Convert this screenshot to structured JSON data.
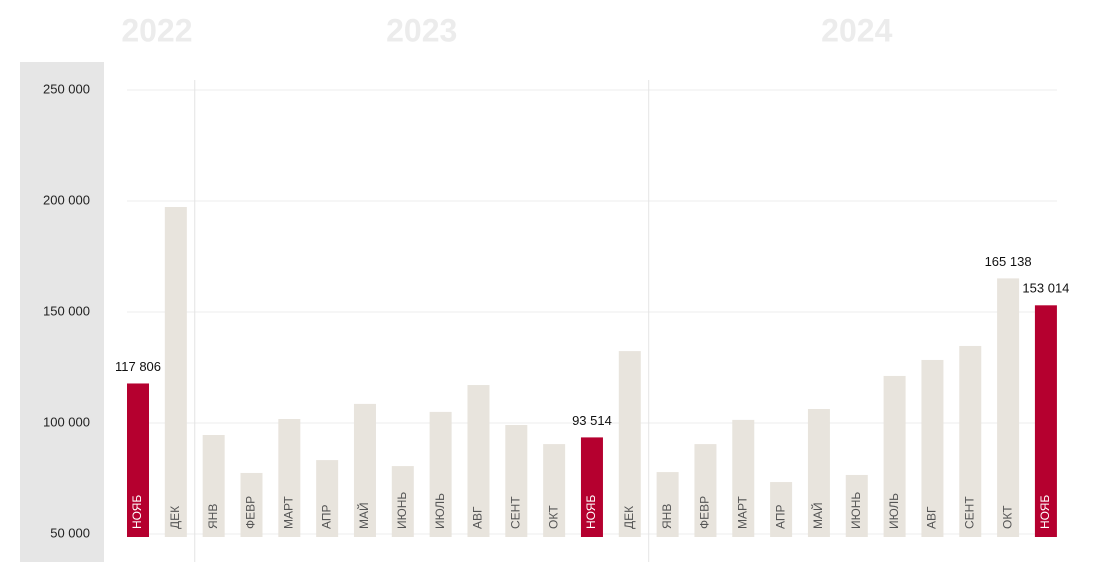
{
  "chart_data": {
    "type": "bar",
    "ylim": [
      48650,
      250000
    ],
    "yticks": [
      {
        "value": 50000,
        "label": "50 000"
      },
      {
        "value": 100000,
        "label": "100 000"
      },
      {
        "value": 150000,
        "label": "150 000"
      },
      {
        "value": 200000,
        "label": "200 000"
      },
      {
        "value": 250000,
        "label": "250 000"
      }
    ],
    "grid": true,
    "groups": [
      {
        "label": "2022",
        "categories": [
          "НОЯБ",
          "ДЕК"
        ],
        "values": [
          117806,
          197300
        ],
        "value_labels": [
          "117 806",
          null
        ],
        "colors": [
          "#b5002f",
          "#e8e4dd"
        ]
      },
      {
        "label": "2023",
        "categories": [
          "ЯНВ",
          "ФЕВР",
          "МАРТ",
          "АПР",
          "МАЙ",
          "ИЮНЬ",
          "ИЮЛЬ",
          "АВГ",
          "СЕНТ",
          "ОКТ",
          "НОЯБ",
          "ДЕК"
        ],
        "values": [
          94600,
          77500,
          101800,
          83300,
          108600,
          80600,
          105000,
          117100,
          99100,
          90500,
          93514,
          132400
        ],
        "value_labels": [
          null,
          null,
          null,
          null,
          null,
          null,
          null,
          null,
          null,
          null,
          "93 514",
          null
        ],
        "colors": [
          "#e8e4dd",
          "#e8e4dd",
          "#e8e4dd",
          "#e8e4dd",
          "#e8e4dd",
          "#e8e4dd",
          "#e8e4dd",
          "#e8e4dd",
          "#e8e4dd",
          "#e8e4dd",
          "#b5002f",
          "#e8e4dd"
        ]
      },
      {
        "label": "2024",
        "categories": [
          "ЯНВ",
          "ФЕВР",
          "МАРТ",
          "АПР",
          "МАЙ",
          "ИЮНЬ",
          "ИЮЛЬ",
          "АВГ",
          "СЕНТ",
          "ОКТ",
          "НОЯБ"
        ],
        "values": [
          77900,
          90500,
          101400,
          73400,
          106300,
          76600,
          121200,
          128400,
          134700,
          165138,
          153014
        ],
        "value_labels": [
          null,
          null,
          null,
          null,
          null,
          null,
          null,
          null,
          null,
          "165 138",
          "153 014"
        ],
        "colors": [
          "#e8e4dd",
          "#e8e4dd",
          "#e8e4dd",
          "#e8e4dd",
          "#e8e4dd",
          "#e8e4dd",
          "#e8e4dd",
          "#e8e4dd",
          "#e8e4dd",
          "#e8e4dd",
          "#b5002f"
        ]
      }
    ]
  }
}
